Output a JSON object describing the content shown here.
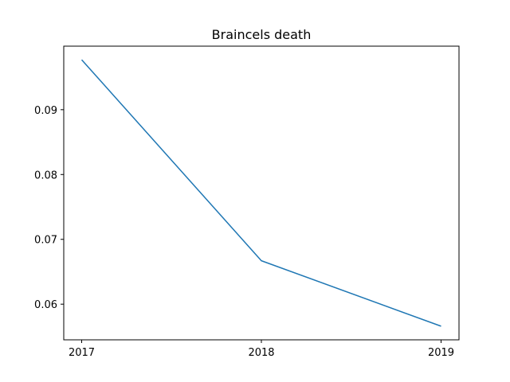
{
  "chart_data": {
    "type": "line",
    "title": "Braincels death",
    "xlabel": "",
    "ylabel": "",
    "categories": [
      "2017",
      "2018",
      "2019"
    ],
    "series": [
      {
        "values": [
          0.0977,
          0.0667,
          0.0566
        ],
        "color": "#1f77b4"
      }
    ],
    "ylim": [
      0.0545,
      0.0998
    ],
    "yticks": [
      0.06,
      0.07,
      0.08,
      0.09
    ],
    "ytick_labels": [
      "0.06",
      "0.07",
      "0.08",
      "0.09"
    ],
    "grid": false
  }
}
